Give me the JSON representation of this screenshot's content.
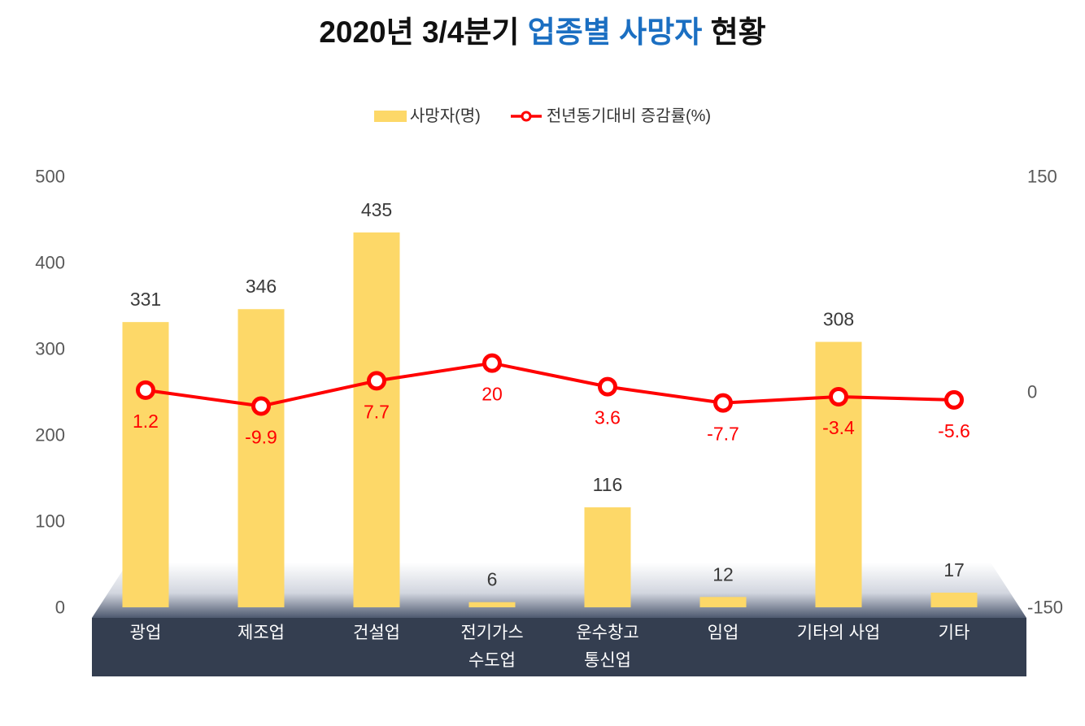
{
  "chart_data": {
    "type": "bar",
    "title": {
      "before": "2020년 3/4분기 ",
      "highlight": "업종별 사망자",
      "after": " 현황",
      "highlight_color": "#1b6fc2"
    },
    "categories": [
      "광업",
      "제조업",
      "건설업",
      "전기가스\n수도업",
      "운수창고\n통신업",
      "임업",
      "기타의 사업",
      "기타"
    ],
    "series": [
      {
        "name": "사망자(명)",
        "type": "bar",
        "axis": "left",
        "color": "#fdd868",
        "values": [
          331,
          346,
          435,
          6,
          116,
          12,
          308,
          17
        ]
      },
      {
        "name": "전년동기대비 증감률(%)",
        "type": "line",
        "axis": "right",
        "color": "#ff0000",
        "marker": "circle",
        "values": [
          1.2,
          -9.9,
          7.7,
          20,
          3.6,
          -7.7,
          -3.4,
          -5.6
        ]
      }
    ],
    "y_left": {
      "range": [
        0,
        500
      ],
      "ticks": [
        0,
        100,
        200,
        300,
        400,
        500
      ]
    },
    "y_right": {
      "range": [
        -150,
        150
      ],
      "ticks": [
        150,
        0,
        -150
      ]
    },
    "data_labels": true,
    "legend": {
      "position": "top"
    },
    "grid": false
  },
  "theme": {
    "title_color": "#111111",
    "category_band": "#343e50",
    "category_text": "#ffffff",
    "value_label": "#3a3a3a",
    "axis_label": "#595959"
  }
}
